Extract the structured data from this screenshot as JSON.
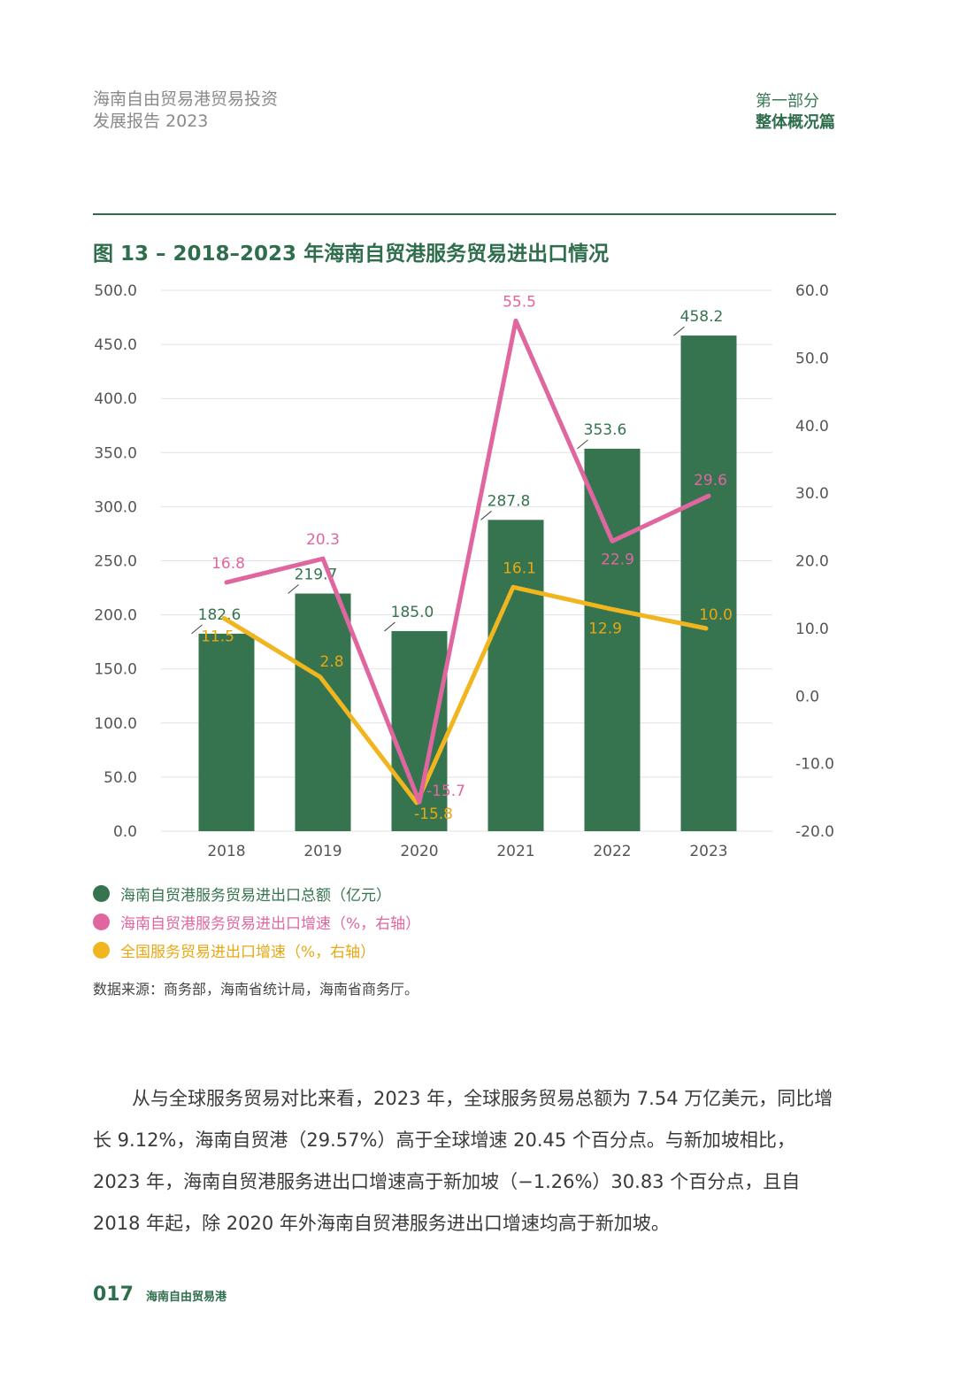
{
  "header": {
    "left_line1": "海南自由贸易港贸易投资",
    "left_line2": "发展报告 2023",
    "right_line1": "第一部分",
    "right_line2": "整体概况篇"
  },
  "figure": {
    "title": "图 13 – 2018–2023 年海南自贸港服务贸易进出口情况",
    "source": "数据来源：商务部，海南省统计局，海南省商务厅。"
  },
  "chart_data": {
    "type": "bar",
    "categories": [
      "2018",
      "2019",
      "2020",
      "2021",
      "2022",
      "2023"
    ],
    "ylim_left": [
      0,
      500
    ],
    "ylim_right": [
      -20,
      60
    ],
    "y_ticks_left": [
      "0.0",
      "50.0",
      "100.0",
      "150.0",
      "200.0",
      "250.0",
      "300.0",
      "350.0",
      "400.0",
      "450.0",
      "500.0"
    ],
    "y_ticks_right": [
      "-20.0",
      "-10.0",
      "0.0",
      "10.0",
      "20.0",
      "30.0",
      "40.0",
      "50.0",
      "60.0"
    ],
    "grid": true,
    "legend_position": "bottom-left",
    "series": [
      {
        "name": "海南自贸港服务贸易进出口总额（亿元）",
        "type": "bar",
        "axis": "left",
        "color": "#35744f",
        "values": [
          182.6,
          219.7,
          185.0,
          287.8,
          353.6,
          458.2
        ],
        "labels": [
          "182.6",
          "219.7",
          "185.0",
          "287.8",
          "353.6",
          "458.2"
        ]
      },
      {
        "name": "海南自贸港服务贸易进出口增速（%，右轴）",
        "type": "line",
        "axis": "right",
        "color": "#e066a0",
        "values": [
          16.8,
          20.3,
          -15.7,
          55.5,
          22.9,
          29.6
        ],
        "labels": [
          "16.8",
          "20.3",
          "-15.7",
          "55.5",
          "22.9",
          "29.6"
        ]
      },
      {
        "name": "全国服务贸易进出口增速（%，右轴）",
        "type": "line",
        "axis": "right",
        "color": "#f0b51f",
        "values": [
          11.5,
          2.8,
          -15.8,
          16.1,
          12.9,
          10.0
        ],
        "labels": [
          "11.5",
          "2.8",
          "-15.8",
          "16.1",
          "12.9",
          "10.0"
        ]
      }
    ]
  },
  "body": {
    "paragraph": "从与全球服务贸易对比来看，2023 年，全球服务贸易总额为 7.54 万亿美元，同比增长 9.12%，海南自贸港（29.57%）高于全球增速 20.45 个百分点。与新加坡相比，2023 年，海南自贸港服务进出口增速高于新加坡（−1.26%）30.83 个百分点，且自 2018 年起，除 2020 年外海南自贸港服务进出口增速均高于新加坡。"
  },
  "footer": {
    "page_number": "017",
    "text": "海南自由贸易港"
  }
}
